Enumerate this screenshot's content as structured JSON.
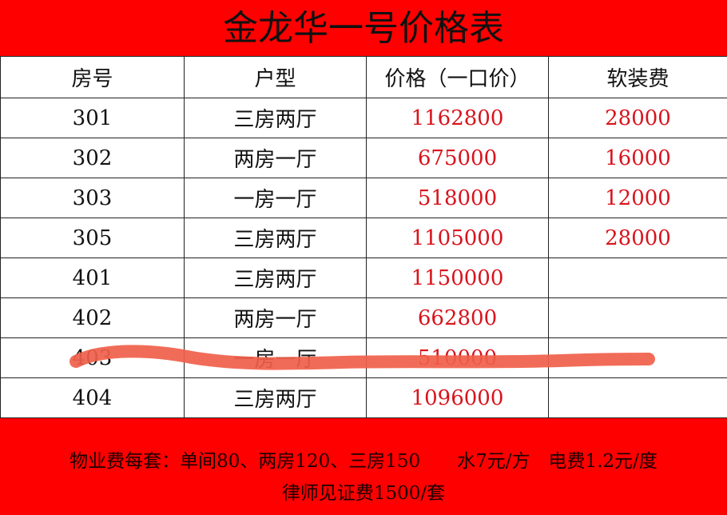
{
  "title": "金龙华一号价格表",
  "columns": [
    "房号",
    "户型",
    "价格（一口价）",
    "软装费"
  ],
  "rows": [
    {
      "room": "301",
      "type": "三房两厅",
      "price": "1162800",
      "fee": "28000"
    },
    {
      "room": "302",
      "type": "两房一厅",
      "price": "675000",
      "fee": "16000"
    },
    {
      "room": "303",
      "type": "一房一厅",
      "price": "518000",
      "fee": "12000"
    },
    {
      "room": "305",
      "type": "三房两厅",
      "price": "1105000",
      "fee": "28000"
    },
    {
      "room": "401",
      "type": "三房两厅",
      "price": "1150000",
      "fee": ""
    },
    {
      "room": "402",
      "type": "两房一厅",
      "price": "662800",
      "fee": ""
    },
    {
      "room": "403",
      "type": "一房一厅",
      "price": "510000",
      "fee": "",
      "struck": true
    },
    {
      "room": "404",
      "type": "三房两厅",
      "price": "1096000",
      "fee": ""
    }
  ],
  "footer": {
    "line1": "物业费每套：单间80、两房120、三房150　　水7元/方　电费1.2元/度",
    "line2": "律师见证费1500/套"
  },
  "colors": {
    "banner": "#fe0000",
    "price_text": "#d9131c",
    "scribble": "#f0604a"
  }
}
